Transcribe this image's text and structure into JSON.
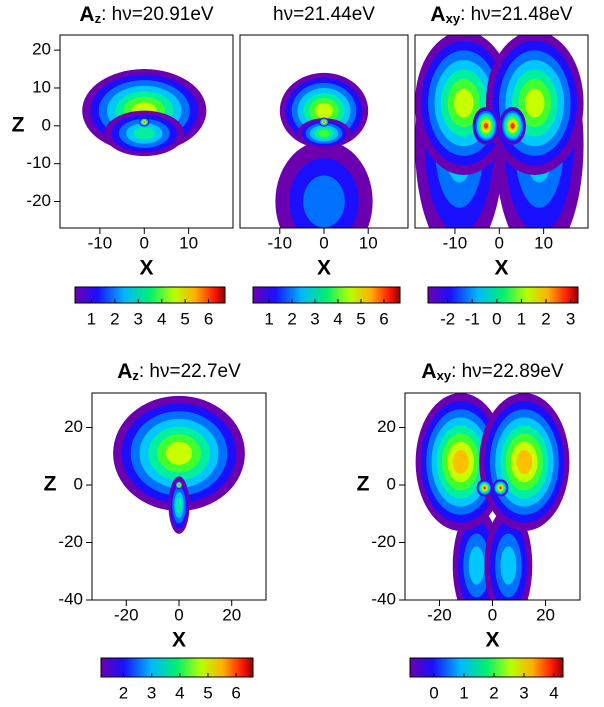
{
  "chart_data": [
    {
      "type": "heatmap",
      "title": {
        "main": "A",
        "sub": "z",
        "rest": ": hν=20.91eV"
      },
      "xlabel": "X",
      "ylabel": "Z",
      "xlim": [
        -19,
        20
      ],
      "xticks": [
        -10,
        0,
        10
      ],
      "ylim": [
        -27,
        24
      ],
      "yticks": [
        -20,
        -10,
        0,
        10,
        20
      ],
      "clim": [
        0.3,
        6.7
      ],
      "cticks": [
        1,
        2,
        3,
        4,
        5,
        6
      ]
    },
    {
      "type": "heatmap",
      "title": {
        "rest": "hν=21.44eV"
      },
      "xlabel": "X",
      "xlim": [
        -19,
        19
      ],
      "xticks": [
        -10,
        0,
        10
      ],
      "ylim": [
        -27,
        24
      ],
      "clim": [
        0.3,
        6.7
      ],
      "cticks": [
        1,
        2,
        3,
        4,
        5,
        6
      ]
    },
    {
      "type": "heatmap",
      "title": {
        "main": "A",
        "sub": "xy",
        "rest": ": hν=21.48eV"
      },
      "xlabel": "X",
      "xlim": [
        -19,
        20
      ],
      "xticks": [
        -10,
        0,
        10
      ],
      "ylim": [
        -27,
        24
      ],
      "clim": [
        -2.8,
        3.3
      ],
      "cticks": [
        -2,
        -1,
        0,
        1,
        2,
        3
      ]
    },
    {
      "type": "heatmap",
      "title": {
        "main": "A",
        "sub": "z",
        "rest": ": hν=22.7eV"
      },
      "xlabel": "X",
      "ylabel": "Z",
      "xlim": [
        -33,
        33
      ],
      "xticks": [
        -20,
        0,
        20
      ],
      "ylim": [
        -40,
        32
      ],
      "yticks": [
        -40,
        -20,
        0,
        20
      ],
      "clim": [
        1.2,
        6.6
      ],
      "cticks": [
        2,
        3,
        4,
        5,
        6
      ]
    },
    {
      "type": "heatmap",
      "title": {
        "main": "A",
        "sub": "xy",
        "rest": ": hν=22.89eV"
      },
      "xlabel": "X",
      "ylabel": "Z",
      "xlim": [
        -33,
        33
      ],
      "xticks": [
        -20,
        0,
        20
      ],
      "ylim": [
        -40,
        32
      ],
      "yticks": [
        -40,
        -20,
        0,
        20
      ],
      "clim": [
        -0.8,
        4.3
      ],
      "cticks": [
        0,
        1,
        2,
        3,
        4
      ]
    }
  ]
}
